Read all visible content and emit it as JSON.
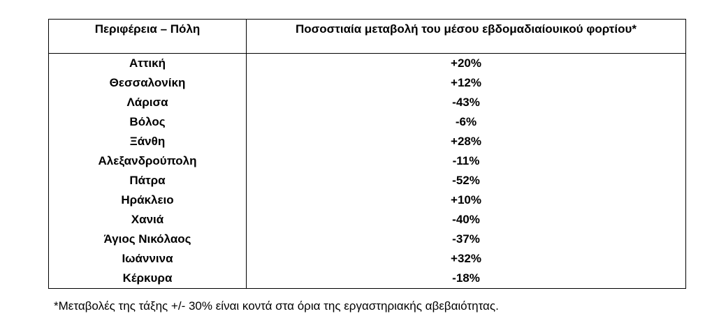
{
  "table": {
    "headers": {
      "region": "Περιφέρεια – Πόλη",
      "change": "Ποσοστιαία μεταβολή του μέσου εβδομαδιαίουικού φορτίου*"
    },
    "rows": [
      {
        "region": "Αττική",
        "change": "+20%"
      },
      {
        "region": "Θεσσαλονίκη",
        "change": "+12%"
      },
      {
        "region": "Λάρισα",
        "change": "-43%"
      },
      {
        "region": "Βόλος",
        "change": "-6%"
      },
      {
        "region": "Ξάνθη",
        "change": "+28%"
      },
      {
        "region": "Αλεξανδρούπολη",
        "change": "-11%"
      },
      {
        "region": "Πάτρα",
        "change": "-52%"
      },
      {
        "region": "Ηράκλειο",
        "change": "+10%"
      },
      {
        "region": "Χανιά",
        "change": "-40%"
      },
      {
        "region": "Άγιος Νικόλαος",
        "change": "-37%"
      },
      {
        "region": "Ιωάννινα",
        "change": "+32%"
      },
      {
        "region": "Κέρκυρα",
        "change": "-18%"
      }
    ]
  },
  "footnote": "*Μεταβολές της τάξης +/- 30% είναι κοντά στα όρια της εργαστηριακής αβεβαιότητας."
}
